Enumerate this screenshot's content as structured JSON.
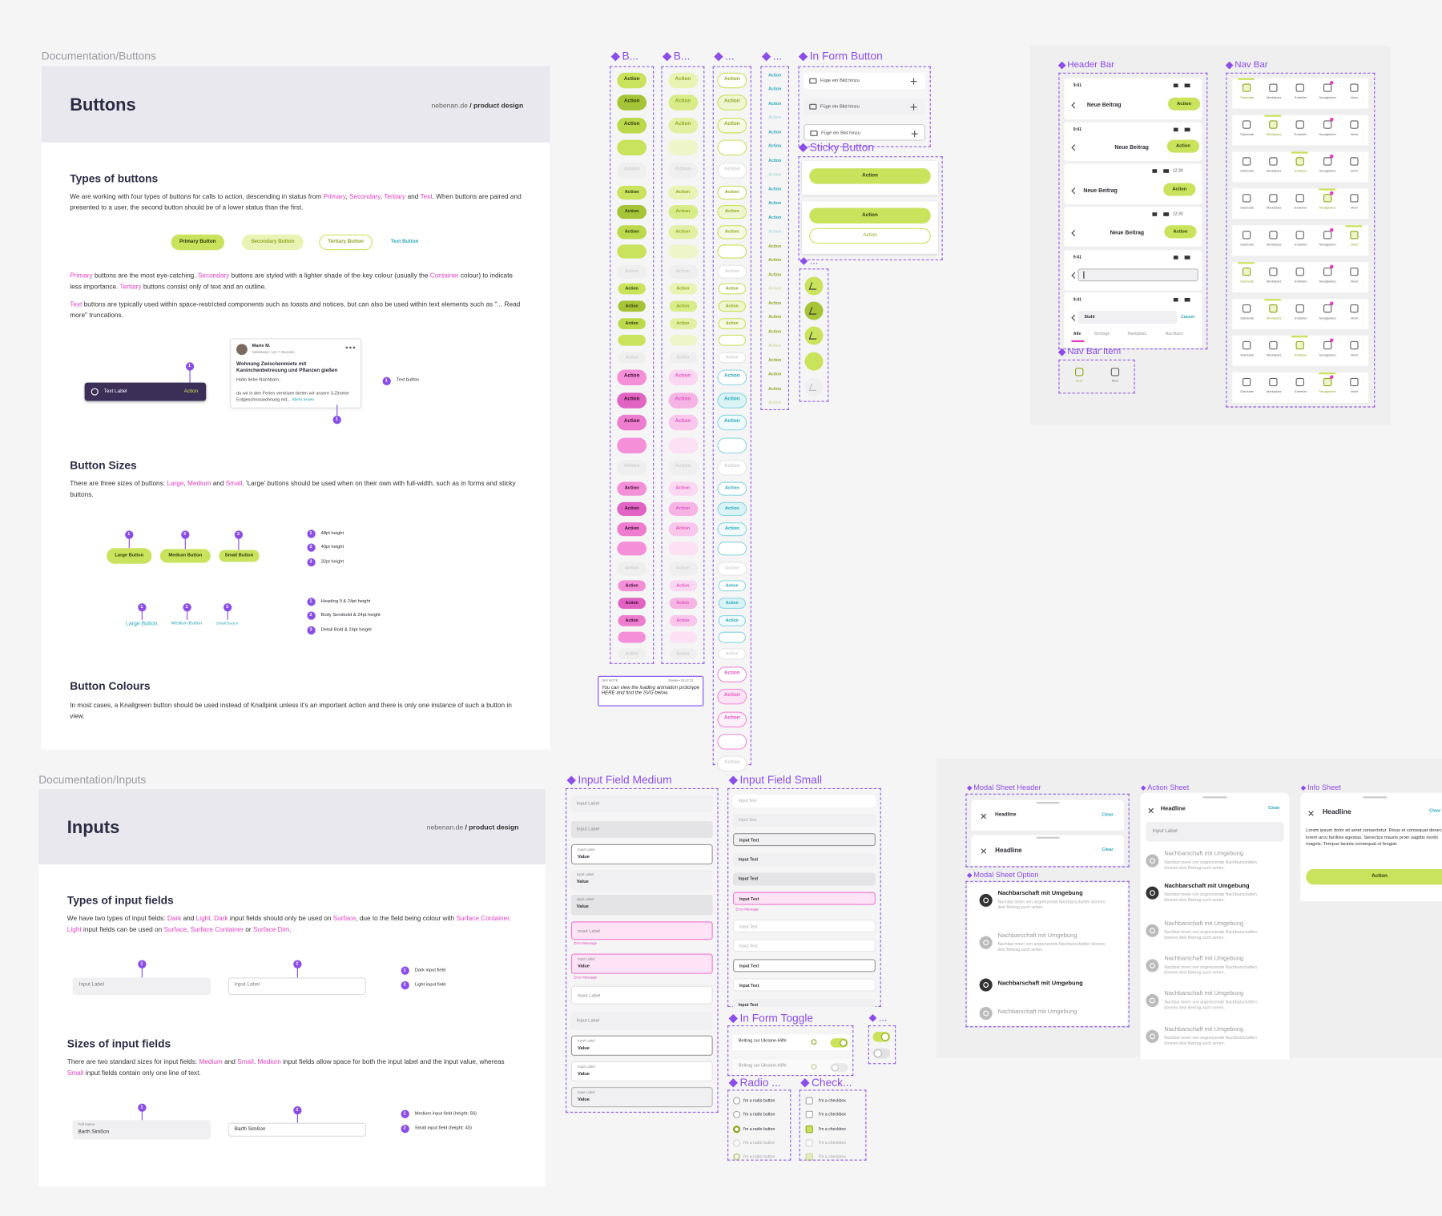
{
  "buttons_doc": {
    "frame_label": "Documentation/Buttons",
    "title": "Buttons",
    "brand": "nebenan.de",
    "brand_suffix": "/ product design",
    "types_heading": "Types of buttons",
    "types_text": [
      {
        "text": "We are working with four types of buttons for calls to action, descending in status from "
      },
      {
        "text": "Primary",
        "accent": true
      },
      {
        "text": ", "
      },
      {
        "text": "Secondary",
        "accent": true
      },
      {
        "text": ", "
      },
      {
        "text": "Tertiary",
        "accent": true
      },
      {
        "text": " and "
      },
      {
        "text": "Text",
        "accent": true
      },
      {
        "text": ". When buttons are paired and presented to a user, the second button should be of a lower status than the first."
      }
    ],
    "examples": [
      "Primary Button",
      "Secondary Button",
      "Tertiary Button",
      "Text Button"
    ],
    "primary_text": [
      {
        "text": "Primary",
        "accent": true
      },
      {
        "text": " buttons are the most eye-catching. "
      },
      {
        "text": "Secondary",
        "accent": true
      },
      {
        "text": " buttons are styled with a lighter shade of the key colour (usually the "
      },
      {
        "text": "Container",
        "accent": true
      },
      {
        "text": " colour) to indicate less importance. "
      },
      {
        "text": "Tertiary",
        "accent": true
      },
      {
        "text": " buttons consist only of text and an outline."
      }
    ],
    "text_buttons_text": [
      {
        "text": "Text",
        "accent": true
      },
      {
        "text": " buttons are typically used within space-restricted components such as toasts and notices, but can also be used within text elements such as \"... Read more\" truncations."
      }
    ],
    "toast": {
      "label": "Text Label",
      "action": "Action"
    },
    "post": {
      "author": "Marie M.",
      "meta": "Nebelweg • vor 7 Stunden",
      "title": "Wohnung Zwischenmiete mit Kaninchenbetreuung und Pflanzen gießen",
      "greeting": "Hallo liebe Nachbarn,",
      "body": "da wir in den Ferien verreisen bieten wir unsere 3-Zimmer Erdgeschosswohnung mit...",
      "more": "Mehr lesen"
    },
    "text_button_note": "Text button",
    "sizes_heading": "Button Sizes",
    "sizes_text": [
      {
        "text": "There are three sizes of buttons: "
      },
      {
        "text": "Large",
        "accent": true
      },
      {
        "text": ", "
      },
      {
        "text": "Medium",
        "accent": true
      },
      {
        "text": " and "
      },
      {
        "text": "Small",
        "accent": true
      },
      {
        "text": ". 'Large' buttons should be used when on their own with full-width, such as in forms and sticky buttons."
      }
    ],
    "markers": [
      "1",
      "2",
      "3"
    ],
    "size_buttons": [
      "Large Button",
      "Medium Button",
      "Small Button"
    ],
    "size_notes": [
      "48pt height",
      "40pt height",
      "32pt height"
    ],
    "text_size_notes": [
      "Heading 9 & 24pt height",
      "Body Semibold & 24pt height",
      "Detail Bold & 24pt height"
    ],
    "colours_heading": "Button Colours",
    "colours_text": "In most cases, a Knallgreen button should be used instead of Knallpink unless it's an important action and there is only one instance of such a button in view."
  },
  "inputs_doc": {
    "frame_label": "Documentation/Inputs",
    "title": "Inputs",
    "types_heading": "Types of input fields",
    "types_text": [
      {
        "text": "We have two types of input fields: "
      },
      {
        "text": "Dark",
        "accent": true
      },
      {
        "text": " and "
      },
      {
        "text": "Light",
        "accent": true
      },
      {
        "text": ". "
      },
      {
        "text": "Dark",
        "accent": true
      },
      {
        "text": " input fields should only be used on "
      },
      {
        "text": "Surface",
        "accent": true
      },
      {
        "text": ", due to the field being colour with "
      },
      {
        "text": "Surface Container",
        "accent": true
      },
      {
        "text": ". "
      },
      {
        "text": "Light",
        "accent": true
      },
      {
        "text": " input fields can be used on "
      },
      {
        "text": "Surface",
        "accent": true
      },
      {
        "text": ", "
      },
      {
        "text": "Surface Container",
        "accent": true
      },
      {
        "text": " or "
      },
      {
        "text": "Surface Dim",
        "accent": true
      },
      {
        "text": "."
      }
    ],
    "field_label": "Input Label",
    "legend": [
      "Dark input field",
      "Light input field"
    ],
    "sizes_heading": "Sizes of input fields",
    "sizes_text": [
      {
        "text": "There are two standard sizes for input fields: "
      },
      {
        "text": "Medium",
        "accent": true
      },
      {
        "text": " and "
      },
      {
        "text": "Small",
        "accent": true
      },
      {
        "text": ". "
      },
      {
        "text": "Medium",
        "accent": true
      },
      {
        "text": " input fields allow space for both the input label and the input value, whereas "
      },
      {
        "text": "Small",
        "accent": true
      },
      {
        "text": " input fields contain only one line of text."
      }
    ],
    "full_name": "Full Name",
    "name_value": "Barth Simßon",
    "size_legend": [
      "Medium input field (height: 56)",
      "Small input field (height: 40)"
    ]
  },
  "components": {
    "button_frames": [
      "B...",
      "B...",
      "...",
      "..."
    ],
    "action": "Action",
    "in_form_title": "In Form Button",
    "add_image": "Füge ein Bild hinzu",
    "sticky_title": "Sticky Button",
    "loading_title": "...",
    "dev_note": {
      "tag": "DEV NOTE",
      "author": "Daniel • 20.02.23",
      "text": "You can view the loading animation prototype HERE and find the SVG below."
    },
    "header_bar": {
      "title": "Header Bar",
      "time": "9:41",
      "heading": "Neue Beitrag",
      "clock": "12:30",
      "search": "Stuhl",
      "cancel": "Cancel",
      "tabs": [
        "Alle",
        "Beiträge",
        "Marktplatz",
        "Nachbarn"
      ]
    },
    "nav_bar": {
      "title": "Nav Bar",
      "items": [
        "Startseite",
        "Marktplatz",
        "Erstellen",
        "Neuigkeiten",
        "Mehr"
      ]
    },
    "nav_item": {
      "title": "Nav Bar Item",
      "label": "Item"
    },
    "input_medium_title": "Input Field Medium",
    "input_small_title": "Input Field Small",
    "input_label": "Input Label",
    "value": "Value",
    "input_text": "Input Text",
    "error": "Error Message",
    "toggle": {
      "title": "In Form Toggle",
      "label": "Beitrag zur Ukraine-Hilfe"
    },
    "toggle_small_title": "...",
    "radio": {
      "title": "Radio ...",
      "label": "I'm a radio button"
    },
    "checkbox": {
      "title": "Check...",
      "label": "I'm a checkbox"
    },
    "modal_header": {
      "title": "Modal Sheet Header",
      "headline": "Headline",
      "clear": "Clear"
    },
    "modal_option": {
      "title": "Modal Sheet Option",
      "label": "Nachbarschaft mit Umgebung",
      "desc": "Nachbar:innen von angrenzende Nachbarschaften können dein Beitrag auch sehen."
    },
    "action_sheet_title": "Action Sheet",
    "info_sheet": {
      "title": "Info Sheet",
      "text": "Lorem ipsum dolor sit amet consectetur. Risus et consequat donec ante lorem arcu facilisis egestas. Senectus mauris proin sagittis morbi magnis. Tempus lacinia consequat ut feugiat."
    }
  }
}
